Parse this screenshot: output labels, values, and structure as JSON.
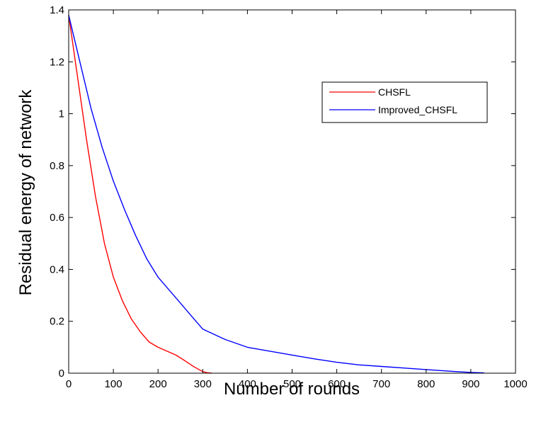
{
  "chart_data": {
    "type": "line",
    "title": "",
    "xlabel": "Number of rounds",
    "ylabel": "Residual energy of network",
    "xlim": [
      0,
      1000
    ],
    "ylim": [
      0,
      1.4
    ],
    "xticks": [
      0,
      100,
      200,
      300,
      400,
      500,
      600,
      700,
      800,
      900,
      1000
    ],
    "yticks": [
      0,
      0.2,
      0.4,
      0.6,
      0.8,
      1,
      1.2,
      1.4
    ],
    "xtick_labels": [
      "0",
      "100",
      "200",
      "300",
      "400",
      "500",
      "600",
      "700",
      "800",
      "900",
      "1000"
    ],
    "ytick_labels": [
      "0",
      "0.2",
      "0.4",
      "0.6",
      "0.8",
      "1",
      "1.2",
      "1.4"
    ],
    "grid": false,
    "legend_position": "top-right",
    "series": [
      {
        "name": "CHSFL",
        "color": "#ff0000",
        "x": [
          0,
          20,
          40,
          60,
          80,
          100,
          120,
          140,
          160,
          180,
          200,
          220,
          240,
          260,
          280,
          300,
          310,
          320
        ],
        "y": [
          1.38,
          1.14,
          0.9,
          0.68,
          0.5,
          0.37,
          0.28,
          0.21,
          0.16,
          0.12,
          0.1,
          0.085,
          0.07,
          0.048,
          0.025,
          0.006,
          0.002,
          0.0
        ]
      },
      {
        "name": "Improved_CHSFL",
        "color": "#0000ff",
        "x": [
          0,
          25,
          50,
          75,
          100,
          125,
          150,
          175,
          200,
          225,
          250,
          275,
          300,
          350,
          400,
          450,
          500,
          550,
          600,
          650,
          700,
          750,
          800,
          850,
          900,
          930
        ],
        "y": [
          1.38,
          1.2,
          1.02,
          0.87,
          0.74,
          0.63,
          0.53,
          0.44,
          0.37,
          0.32,
          0.27,
          0.22,
          0.17,
          0.13,
          0.1,
          0.085,
          0.07,
          0.055,
          0.042,
          0.032,
          0.026,
          0.02,
          0.014,
          0.008,
          0.003,
          0.001
        ]
      }
    ]
  }
}
